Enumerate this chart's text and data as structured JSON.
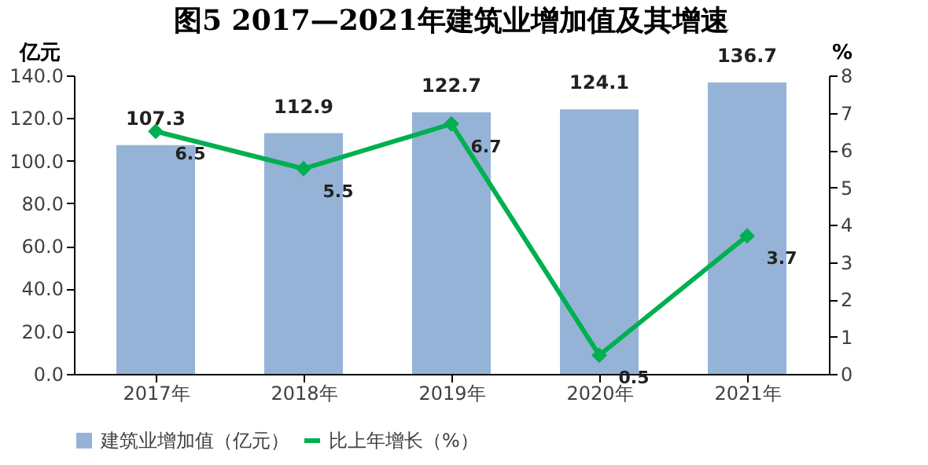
{
  "chart_data": {
    "type": "bar",
    "title": "图5  2017—2021年建筑业增加值及其增速",
    "ylabel": "亿元",
    "y2label": "%",
    "categories": [
      "2017年",
      "2018年",
      "2019年",
      "2020年",
      "2021年"
    ],
    "series": [
      {
        "name": "建筑业增加值（亿元）",
        "color": "#95b3d7",
        "values": [
          107.3,
          112.9,
          122.7,
          124.1,
          136.7
        ]
      },
      {
        "name": "比上年增长（%）",
        "type": "line",
        "axis": "y2",
        "color": "#00b050",
        "values": [
          6.5,
          5.5,
          6.7,
          0.5,
          3.7
        ],
        "marker": "diamond"
      }
    ],
    "ylim": [
      0,
      140
    ],
    "yticks": [
      {
        "value": 0,
        "label": "0.0"
      },
      {
        "value": 20,
        "label": "20.0"
      },
      {
        "value": 40,
        "label": "40.0"
      },
      {
        "value": 60,
        "label": "60.0"
      },
      {
        "value": 80,
        "label": "80.0"
      },
      {
        "value": 100,
        "label": "100.0"
      },
      {
        "value": 120,
        "label": "120.0"
      },
      {
        "value": 140,
        "label": "140.0"
      }
    ],
    "y2lim": [
      0,
      8
    ],
    "y2ticks": [
      0,
      1,
      2,
      3,
      4,
      5,
      6,
      7,
      8
    ],
    "data_labels": true,
    "grid": false,
    "legend": "bottom"
  }
}
